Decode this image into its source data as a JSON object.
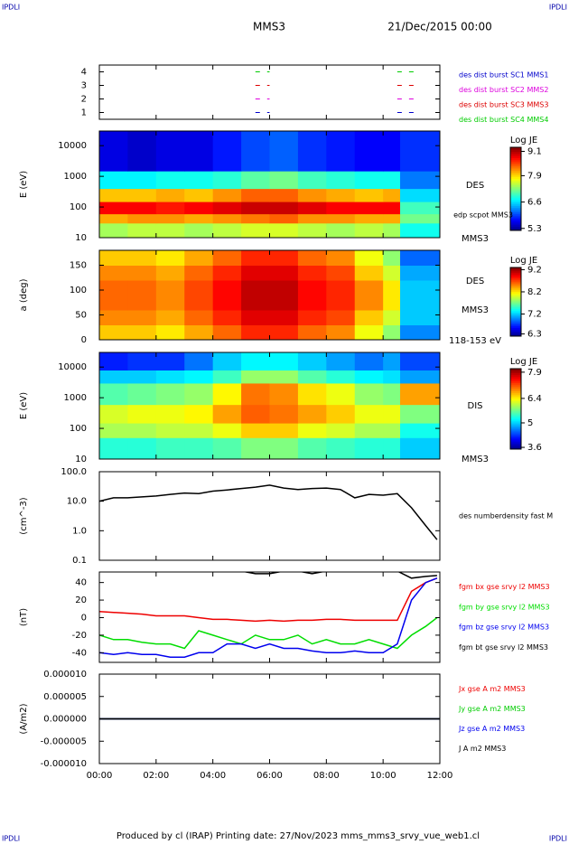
{
  "header": {
    "corner": "IPDLI",
    "spacecraft": "MMS3",
    "date": "21/Dec/2015 00:00",
    "footer": "Produced by cl (IRAP)   Printing date: 27/Nov/2023   mms_mms3_srvy_vue_web1.cl"
  },
  "chart_data": [
    {
      "type": "timeline",
      "ylim": [
        0.5,
        4.5
      ],
      "yticks": [
        1,
        2,
        3,
        4
      ],
      "series": [
        {
          "name": "des dist burst SC1 MMS1",
          "color": "#0000cc",
          "level": 1,
          "intervals": [
            [
              5.5,
              6.0
            ],
            [
              10.5,
              11.3
            ]
          ]
        },
        {
          "name": "des dist burst SC2 MMS2",
          "color": "#dd00dd",
          "level": 2,
          "intervals": [
            [
              5.5,
              6.0
            ],
            [
              10.5,
              11.3
            ]
          ]
        },
        {
          "name": "des dist burst SC3 MMS3",
          "color": "#dd0000",
          "level": 3,
          "intervals": [
            [
              5.5,
              6.0
            ],
            [
              10.5,
              11.3
            ]
          ]
        },
        {
          "name": "des dist burst SC4 MMS4",
          "color": "#00cc00",
          "level": 4,
          "intervals": [
            [
              5.5,
              6.0
            ],
            [
              10.5,
              11.3
            ]
          ]
        }
      ]
    },
    {
      "type": "heatmap",
      "ylabel": "E (eV)",
      "log": true,
      "ylim": [
        10,
        30000
      ],
      "yticks": [
        10,
        100,
        1000,
        10000
      ],
      "cbar_title": "Log JE",
      "clim": [
        5.2,
        9.3
      ],
      "cbticks": [
        9.1,
        7.9,
        6.6,
        5.3
      ],
      "labels": [
        "DES",
        "edp scpot MMS3",
        "MMS3"
      ],
      "xbins": [
        0,
        1,
        2,
        3,
        4,
        5,
        6,
        7,
        8,
        9,
        10,
        10.6,
        12
      ],
      "ybins": [
        10,
        30,
        60,
        150,
        400,
        1500,
        30000
      ],
      "z": [
        [
          7.4,
          7.5,
          7.5,
          7.4,
          7.5,
          7.6,
          7.6,
          7.5,
          7.4,
          7.5,
          7.4,
          6.8
        ],
        [
          8.1,
          8.2,
          8.2,
          8.1,
          8.2,
          8.3,
          8.4,
          8.2,
          8.2,
          8.1,
          8.1,
          7.2
        ],
        [
          8.8,
          8.8,
          8.7,
          8.8,
          8.9,
          9.0,
          9.0,
          8.9,
          8.8,
          8.8,
          8.8,
          7.0
        ],
        [
          8.0,
          8.0,
          8.1,
          8.0,
          8.2,
          8.4,
          8.4,
          8.2,
          8.1,
          8.0,
          8.1,
          6.6
        ],
        [
          6.7,
          6.7,
          6.8,
          6.8,
          6.9,
          7.1,
          7.2,
          7.0,
          6.9,
          6.8,
          6.8,
          6.2
        ],
        [
          5.6,
          5.5,
          5.6,
          5.6,
          5.8,
          6.0,
          6.1,
          5.9,
          5.8,
          5.7,
          5.7,
          5.9
        ]
      ]
    },
    {
      "type": "heatmap",
      "ylabel": "a (deg)",
      "log": false,
      "ylim": [
        0,
        180
      ],
      "yticks": [
        0,
        50,
        100,
        150
      ],
      "cbar_title": "Log JE",
      "clim": [
        6.2,
        9.3
      ],
      "cbticks": [
        9.2,
        8.2,
        7.2,
        6.3
      ],
      "labels": [
        "DES",
        "MMS3",
        "118-153 eV"
      ],
      "xbins": [
        0,
        1,
        2,
        3,
        4,
        5,
        6,
        7,
        8,
        9,
        10,
        10.6,
        12
      ],
      "ybins": [
        0,
        30,
        60,
        90,
        120,
        150,
        180
      ],
      "z": [
        [
          8.3,
          8.3,
          8.2,
          8.4,
          8.6,
          8.8,
          8.8,
          8.6,
          8.5,
          8.1,
          7.8,
          7.0
        ],
        [
          8.5,
          8.5,
          8.4,
          8.6,
          8.8,
          9.0,
          9.0,
          8.8,
          8.7,
          8.3,
          8.0,
          7.2
        ],
        [
          8.6,
          8.6,
          8.5,
          8.7,
          8.9,
          9.1,
          9.1,
          8.9,
          8.8,
          8.5,
          8.2,
          7.2
        ],
        [
          8.6,
          8.6,
          8.5,
          8.7,
          8.9,
          9.1,
          9.1,
          8.9,
          8.8,
          8.5,
          8.2,
          7.2
        ],
        [
          8.5,
          8.5,
          8.4,
          8.6,
          8.8,
          9.0,
          9.0,
          8.8,
          8.7,
          8.3,
          8.0,
          7.1
        ],
        [
          8.3,
          8.3,
          8.2,
          8.4,
          8.6,
          8.8,
          8.8,
          8.6,
          8.5,
          8.1,
          7.8,
          6.9
        ]
      ]
    },
    {
      "type": "heatmap",
      "ylabel": "E (eV)",
      "log": true,
      "ylim": [
        10,
        30000
      ],
      "yticks": [
        10,
        100,
        1000,
        10000
      ],
      "cbar_title": "Log JE",
      "clim": [
        3.5,
        8.1
      ],
      "cbticks": [
        7.9,
        6.4,
        5.0,
        3.6
      ],
      "labels": [
        "DIS",
        "MMS3"
      ],
      "xbins": [
        0,
        1,
        2,
        3,
        4,
        5,
        6,
        7,
        8,
        9,
        10,
        10.6,
        12
      ],
      "ybins": [
        10,
        50,
        150,
        600,
        3000,
        8000,
        30000
      ],
      "z": [
        [
          5.4,
          5.4,
          5.5,
          5.5,
          5.6,
          5.8,
          5.8,
          5.6,
          5.5,
          5.4,
          5.4,
          5.0
        ],
        [
          6.0,
          6.0,
          6.1,
          6.1,
          6.3,
          6.6,
          6.6,
          6.3,
          6.2,
          6.0,
          6.0,
          5.3
        ],
        [
          6.2,
          6.3,
          6.3,
          6.4,
          6.8,
          7.1,
          7.0,
          6.8,
          6.6,
          6.3,
          6.3,
          5.8
        ],
        [
          5.6,
          5.7,
          5.8,
          5.9,
          6.4,
          7.0,
          6.9,
          6.5,
          6.3,
          5.9,
          5.8,
          6.8
        ],
        [
          5.0,
          5.0,
          5.1,
          5.2,
          5.5,
          5.9,
          5.9,
          5.6,
          5.4,
          5.2,
          5.1,
          4.8
        ],
        [
          4.2,
          4.3,
          4.3,
          4.6,
          5.0,
          5.2,
          5.2,
          5.0,
          4.8,
          4.6,
          4.8,
          4.4
        ]
      ]
    },
    {
      "type": "line",
      "ylabel": "(cm^-3)",
      "log": true,
      "ylim": [
        0.1,
        100
      ],
      "yticks": [
        0.1,
        {
          "value": 1,
          "label": "1.0"
        },
        {
          "value": 10,
          "label": "10.0"
        },
        {
          "value": 100,
          "label": "100.0"
        }
      ],
      "x": [
        0,
        0.5,
        1,
        1.5,
        2,
        2.5,
        3,
        3.5,
        4,
        4.5,
        5,
        5.5,
        6,
        6.5,
        7,
        7.5,
        8,
        8.5,
        9,
        9.5,
        10,
        10.5,
        11,
        11.5,
        11.9
      ],
      "series": [
        {
          "name": "des numberdensity fast M",
          "color": "#000000",
          "values": [
            10,
            13,
            13,
            14,
            15,
            17,
            19,
            18,
            22,
            24,
            27,
            30,
            35,
            28,
            25,
            27,
            28,
            25,
            13,
            17,
            16,
            18,
            6,
            1.5,
            0.5
          ]
        }
      ]
    },
    {
      "type": "line",
      "ylabel": "(nT)",
      "log": false,
      "ylim": [
        -51,
        52
      ],
      "yticks": [
        -40,
        -20,
        0,
        20,
        40
      ],
      "x": [
        0,
        0.5,
        1,
        1.5,
        2,
        2.5,
        3,
        3.5,
        4,
        4.5,
        5,
        5.5,
        6,
        6.5,
        7,
        7.5,
        8,
        8.5,
        9,
        9.5,
        10,
        10.5,
        11,
        11.5,
        11.9
      ],
      "series": [
        {
          "name": "fgm bx gse srvy l2 MMS3",
          "color": "#ee0000",
          "values": [
            7,
            6,
            5,
            4,
            2,
            2,
            2,
            0,
            -2,
            -2,
            -3,
            -4,
            -3,
            -4,
            -3,
            -3,
            -2,
            -2,
            -3,
            -3,
            -3,
            -3,
            30,
            40,
            45
          ]
        },
        {
          "name": "fgm by gse srvy l2 MMS3",
          "color": "#00dd00",
          "values": [
            -20,
            -25,
            -25,
            -28,
            -30,
            -30,
            -35,
            -15,
            -20,
            -25,
            -30,
            -20,
            -25,
            -25,
            -20,
            -30,
            -25,
            -30,
            -30,
            -25,
            -30,
            -35,
            -20,
            -10,
            0
          ]
        },
        {
          "name": "fgm bz gse srvy l2 MMS3",
          "color": "#0000ee",
          "values": [
            -40,
            -42,
            -40,
            -42,
            -42,
            -45,
            -45,
            -40,
            -40,
            -30,
            -30,
            -35,
            -30,
            -35,
            -35,
            -38,
            -40,
            -40,
            -38,
            -40,
            -40,
            -30,
            20,
            40,
            45
          ]
        },
        {
          "name": "fgm bt gse srvy l2 MMS3",
          "color": "#000000",
          "values": [
            53,
            53,
            53,
            53,
            53,
            53,
            53,
            53,
            53,
            53,
            53,
            50,
            50,
            53,
            53,
            50,
            53,
            53,
            53,
            53,
            53,
            53,
            45,
            47,
            48
          ]
        }
      ]
    },
    {
      "type": "line",
      "ylabel": "(A/m2)",
      "log": false,
      "ylim": [
        -1e-05,
        1e-05
      ],
      "yticks": [
        {
          "value": -1e-05,
          "label": "-0.000010"
        },
        {
          "value": -5e-06,
          "label": "-0.000005"
        },
        {
          "value": 0,
          "label": "0.000000"
        },
        {
          "value": 5e-06,
          "label": "0.000005"
        },
        {
          "value": 1e-05,
          "label": "0.000010"
        }
      ],
      "xlim": [
        0,
        12
      ],
      "xticks": [
        {
          "value": 0,
          "label": "00:00"
        },
        {
          "value": 2,
          "label": "02:00"
        },
        {
          "value": 4,
          "label": "04:00"
        },
        {
          "value": 6,
          "label": "06:00"
        },
        {
          "value": 8,
          "label": "08:00"
        },
        {
          "value": 10,
          "label": "10:00"
        },
        {
          "value": 12,
          "label": "12:00"
        }
      ],
      "x": [
        0,
        12
      ],
      "series": [
        {
          "name": "Jx gse A m2 MMS3",
          "color": "#ee0000",
          "values": [
            0,
            0
          ]
        },
        {
          "name": "Jy gse A m2 MMS3",
          "color": "#00cc00",
          "values": [
            0,
            0
          ]
        },
        {
          "name": "Jz gse A m2 MMS3",
          "color": "#0000ee",
          "values": [
            0,
            0
          ]
        },
        {
          "name": "J A m2 MMS3",
          "color": "#000000",
          "values": [
            0,
            0
          ]
        }
      ]
    }
  ]
}
